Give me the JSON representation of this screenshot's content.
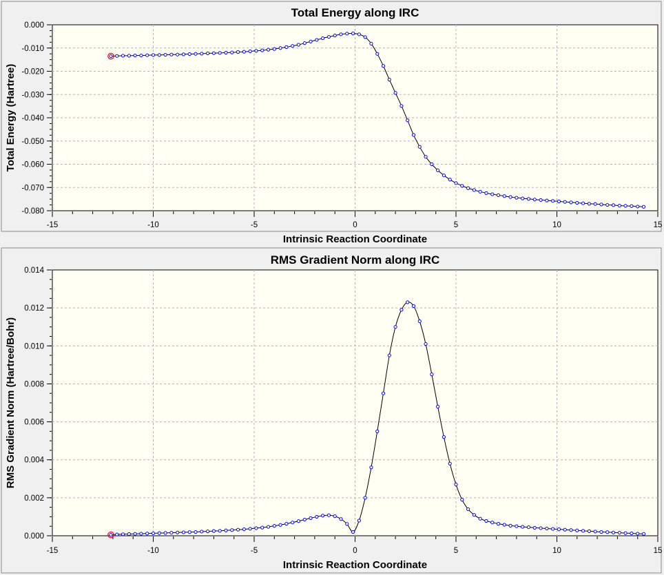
{
  "chart_data": [
    {
      "type": "line",
      "title": "Total Energy along IRC",
      "xlabel": "Intrinsic Reaction Coordinate",
      "ylabel": "Total Energy (Hartree)",
      "xlim": [
        -15,
        15
      ],
      "ylim": [
        -0.08,
        0.0
      ],
      "xticks": [
        -15,
        -10,
        -5,
        0,
        5,
        10,
        15
      ],
      "yticks": [
        0.0,
        -0.01,
        -0.02,
        -0.03,
        -0.04,
        -0.05,
        -0.06,
        -0.07,
        -0.08
      ],
      "ytick_decimals": 3,
      "grid": true,
      "plot_background": "#fffff3",
      "line_color": "#000000",
      "marker_color": "#0000ff",
      "highlight_color": "#ff0000",
      "highlight_index": 0,
      "x": [
        -12.1,
        -11.8,
        -11.5,
        -11.2,
        -10.9,
        -10.6,
        -10.3,
        -10.0,
        -9.7,
        -9.4,
        -9.1,
        -8.8,
        -8.5,
        -8.2,
        -7.9,
        -7.6,
        -7.3,
        -7.0,
        -6.7,
        -6.4,
        -6.1,
        -5.8,
        -5.5,
        -5.2,
        -4.9,
        -4.6,
        -4.3,
        -4.0,
        -3.7,
        -3.4,
        -3.1,
        -2.8,
        -2.5,
        -2.2,
        -1.9,
        -1.6,
        -1.3,
        -1.0,
        -0.7,
        -0.4,
        -0.1,
        0.2,
        0.5,
        0.8,
        1.1,
        1.4,
        1.7,
        2.0,
        2.3,
        2.6,
        2.9,
        3.2,
        3.5,
        3.8,
        4.1,
        4.4,
        4.7,
        5.0,
        5.3,
        5.6,
        5.9,
        6.2,
        6.5,
        6.8,
        7.1,
        7.4,
        7.7,
        8.0,
        8.3,
        8.6,
        8.9,
        9.2,
        9.5,
        9.8,
        10.1,
        10.4,
        10.7,
        11.0,
        11.3,
        11.6,
        11.9,
        12.2,
        12.5,
        12.8,
        13.1,
        13.4,
        13.7,
        14.0,
        14.3
      ],
      "y": [
        -0.0135,
        -0.0134,
        -0.0133,
        -0.0133,
        -0.0132,
        -0.0132,
        -0.0131,
        -0.013,
        -0.013,
        -0.0129,
        -0.0128,
        -0.0128,
        -0.0127,
        -0.0126,
        -0.0125,
        -0.0124,
        -0.0123,
        -0.0122,
        -0.0121,
        -0.012,
        -0.0119,
        -0.0117,
        -0.0116,
        -0.0114,
        -0.0112,
        -0.011,
        -0.0107,
        -0.0104,
        -0.01,
        -0.0096,
        -0.0091,
        -0.0086,
        -0.0079,
        -0.0072,
        -0.0065,
        -0.0058,
        -0.0052,
        -0.0046,
        -0.0041,
        -0.0038,
        -0.0037,
        -0.0041,
        -0.0053,
        -0.0081,
        -0.0125,
        -0.0177,
        -0.0236,
        -0.0293,
        -0.0349,
        -0.0411,
        -0.0474,
        -0.0525,
        -0.0568,
        -0.06,
        -0.0626,
        -0.0648,
        -0.0666,
        -0.0681,
        -0.0693,
        -0.0703,
        -0.0711,
        -0.0718,
        -0.0724,
        -0.0729,
        -0.0733,
        -0.0737,
        -0.0741,
        -0.0744,
        -0.0747,
        -0.0749,
        -0.0752,
        -0.0754,
        -0.0756,
        -0.0758,
        -0.076,
        -0.0762,
        -0.0764,
        -0.0766,
        -0.0768,
        -0.077,
        -0.0771,
        -0.0773,
        -0.0775,
        -0.0776,
        -0.0778,
        -0.0779,
        -0.078,
        -0.0782,
        -0.0783
      ]
    },
    {
      "type": "line",
      "title": "RMS Gradient Norm along IRC",
      "xlabel": "Intrinsic Reaction Coordinate",
      "ylabel": "RMS Gradient Norm (Hartree/Bohr)",
      "xlim": [
        -15,
        15
      ],
      "ylim": [
        0.0,
        0.014
      ],
      "xticks": [
        -15,
        -10,
        -5,
        0,
        5,
        10,
        15
      ],
      "yticks": [
        0.0,
        0.002,
        0.004,
        0.006,
        0.008,
        0.01,
        0.012,
        0.014
      ],
      "ytick_decimals": 3,
      "grid": true,
      "plot_background": "#fffff3",
      "line_color": "#000000",
      "marker_color": "#0000ff",
      "highlight_color": "#ff0000",
      "highlight_index": 0,
      "x": [
        -12.1,
        -11.8,
        -11.5,
        -11.2,
        -10.9,
        -10.6,
        -10.3,
        -10.0,
        -9.7,
        -9.4,
        -9.1,
        -8.8,
        -8.5,
        -8.2,
        -7.9,
        -7.6,
        -7.3,
        -7.0,
        -6.7,
        -6.4,
        -6.1,
        -5.8,
        -5.5,
        -5.2,
        -4.9,
        -4.6,
        -4.3,
        -4.0,
        -3.7,
        -3.4,
        -3.1,
        -2.8,
        -2.5,
        -2.2,
        -1.9,
        -1.6,
        -1.3,
        -1.0,
        -0.7,
        -0.4,
        -0.1,
        0.2,
        0.5,
        0.8,
        1.1,
        1.4,
        1.7,
        2.0,
        2.3,
        2.6,
        2.9,
        3.2,
        3.5,
        3.8,
        4.1,
        4.4,
        4.7,
        5.0,
        5.3,
        5.6,
        5.9,
        6.2,
        6.5,
        6.8,
        7.1,
        7.4,
        7.7,
        8.0,
        8.3,
        8.6,
        8.9,
        9.2,
        9.5,
        9.8,
        10.1,
        10.4,
        10.7,
        11.0,
        11.3,
        11.6,
        11.9,
        12.2,
        12.5,
        12.8,
        13.1,
        13.4,
        13.7,
        14.0,
        14.3
      ],
      "y": [
        5e-05,
        7e-05,
        8e-05,
        9e-05,
        0.0001,
        0.00011,
        0.00012,
        0.00013,
        0.00014,
        0.00015,
        0.00016,
        0.00017,
        0.00018,
        0.00019,
        0.0002,
        0.00022,
        0.00023,
        0.00025,
        0.00026,
        0.00028,
        0.0003,
        0.00032,
        0.00034,
        0.00037,
        0.0004,
        0.00043,
        0.00047,
        0.00052,
        0.00057,
        0.00063,
        0.0007,
        0.00077,
        0.00085,
        0.00093,
        0.001,
        0.00106,
        0.00108,
        0.00103,
        0.00088,
        0.00062,
        0.0002,
        0.0008,
        0.002,
        0.0036,
        0.0055,
        0.0075,
        0.0095,
        0.011,
        0.0119,
        0.0123,
        0.0121,
        0.0113,
        0.0101,
        0.0085,
        0.0068,
        0.0052,
        0.0038,
        0.0027,
        0.0019,
        0.0014,
        0.0011,
        0.0009,
        0.00078,
        0.0007,
        0.00063,
        0.00058,
        0.00053,
        0.0005,
        0.00047,
        0.00045,
        0.00042,
        0.0004,
        0.00038,
        0.00036,
        0.00034,
        0.00032,
        0.0003,
        0.00028,
        0.00026,
        0.00024,
        0.00022,
        0.0002,
        0.00019,
        0.00017,
        0.00016,
        0.00014,
        0.00013,
        0.00011,
        0.0001
      ]
    }
  ]
}
